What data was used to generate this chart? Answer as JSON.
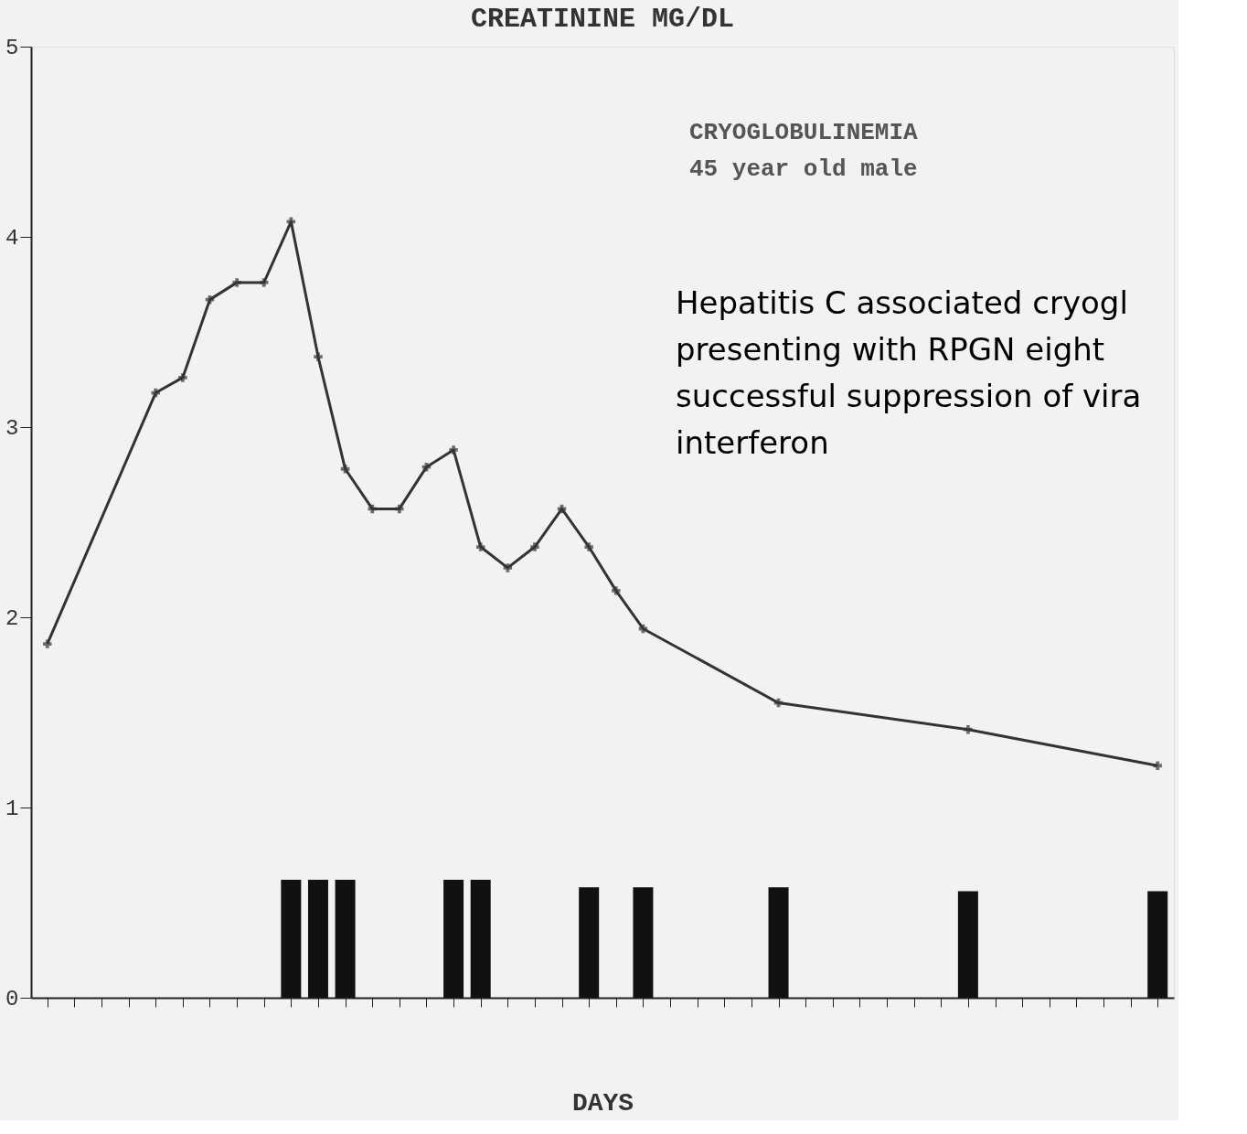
{
  "chart_data": {
    "type": "line",
    "title": "CREATININE MG/DL",
    "xlabel": "DAYS",
    "annotations": [
      "CRYOGLOBULINEMIA",
      "45 year old male",
      "Hepatitis C associated cryogl\npresenting with RPGN eight\nsuccessful suppression of vira\ninterferon"
    ],
    "categories": [
      null,
      null,
      null,
      null,
      null,
      null,
      null,
      null,
      null,
      null,
      null,
      null,
      null,
      null,
      null,
      null,
      null,
      null,
      null,
      null,
      null,
      null,
      null,
      null,
      null,
      null,
      null,
      null,
      null,
      null,
      null,
      null,
      null,
      null,
      null,
      null,
      null,
      null,
      null,
      null,
      null,
      null
    ],
    "ylim": [
      0,
      5
    ],
    "yticks": [
      0,
      1,
      2,
      3,
      4,
      5
    ],
    "tick_labels": "y",
    "grid": false,
    "marker": "cross",
    "line_style": "solid",
    "series": [
      {
        "type": "bar",
        "color": "#111111",
        "values": [
          null,
          null,
          null,
          null,
          null,
          null,
          null,
          null,
          null,
          0.62,
          0.62,
          0.62,
          null,
          null,
          null,
          0.62,
          0.62,
          null,
          null,
          null,
          0.58,
          null,
          0.58,
          null,
          null,
          null,
          null,
          0.58,
          null,
          null,
          null,
          null,
          null,
          null,
          0.56,
          null,
          null,
          null,
          null,
          null,
          null,
          0.56
        ]
      },
      {
        "color": "#333333",
        "values": [
          1.86,
          null,
          null,
          null,
          3.18,
          3.26,
          3.67,
          3.76,
          3.76,
          4.08,
          3.37,
          2.78,
          2.57,
          2.57,
          2.79,
          2.88,
          2.37,
          2.26,
          2.37,
          2.57,
          2.37,
          2.14,
          1.94,
          null,
          null,
          null,
          null,
          1.55,
          null,
          null,
          null,
          null,
          null,
          null,
          1.41,
          null,
          null,
          null,
          null,
          null,
          null,
          1.22
        ]
      }
    ]
  }
}
